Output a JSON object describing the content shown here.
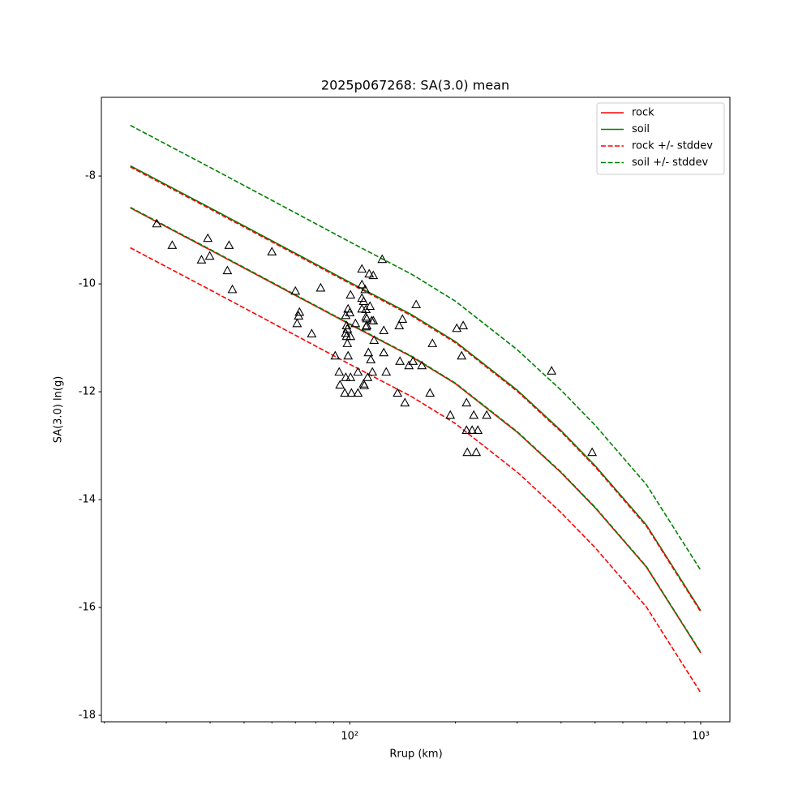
{
  "chart_data": {
    "type": "line",
    "title": "2025p067268: SA(3.0) mean",
    "xlabel": "Rrup (km)",
    "ylabel": "SA(3.0) ln(g)",
    "xscale": "log",
    "xlim": [
      19.6,
      1211
    ],
    "ylim": [
      -18.12,
      -6.54
    ],
    "xticks": [
      {
        "value": 100,
        "label": "10²"
      },
      {
        "value": 1000,
        "label": "10³"
      }
    ],
    "xminorticks": [
      20,
      30,
      40,
      50,
      60,
      70,
      80,
      90,
      200,
      300,
      400,
      500,
      600,
      700,
      800,
      900
    ],
    "yticks": [
      -18,
      -16,
      -14,
      -12,
      -10,
      -8
    ],
    "legend": "upper right",
    "x": [
      23.7,
      40,
      60,
      100,
      150,
      200,
      300,
      400,
      500,
      700,
      1000
    ],
    "series": [
      {
        "name": "rock",
        "color": "#ff0000",
        "values": [
          -8.59,
          -9.37,
          -9.98,
          -10.75,
          -11.35,
          -11.85,
          -12.75,
          -13.5,
          -14.15,
          -15.25,
          -16.84
        ]
      },
      {
        "name": "soil",
        "color": "#008000",
        "values": [
          -7.81,
          -8.59,
          -9.2,
          -9.97,
          -10.57,
          -11.07,
          -11.97,
          -12.72,
          -13.37,
          -14.47,
          -16.06
        ]
      },
      {
        "name": "rock +/- stddev",
        "color": "#ff0000",
        "linestyle": "dashed",
        "upper": [
          -7.83,
          -8.61,
          -9.22,
          -9.99,
          -10.59,
          -11.09,
          -11.99,
          -12.74,
          -13.39,
          -14.49,
          -16.08
        ],
        "lower": [
          -9.33,
          -10.11,
          -10.72,
          -11.49,
          -12.09,
          -12.59,
          -13.49,
          -14.24,
          -14.89,
          -15.99,
          -17.58
        ]
      },
      {
        "name": "soil +/- stddev",
        "color": "#008000",
        "linestyle": "dashed",
        "upper": [
          -7.06,
          -7.84,
          -8.45,
          -9.22,
          -9.82,
          -10.32,
          -11.22,
          -11.97,
          -12.62,
          -13.72,
          -15.31
        ],
        "lower": [
          -8.58,
          -9.36,
          -9.97,
          -10.74,
          -11.34,
          -11.84,
          -12.74,
          -13.49,
          -14.14,
          -15.24,
          -16.83
        ]
      }
    ],
    "scatter": {
      "marker": "triangle",
      "color": "#000000",
      "x": [
        28.2,
        31.2,
        39.4,
        37.8,
        39.9,
        45.3,
        44.8,
        46.3,
        60.0,
        70.0,
        70.8,
        71.5,
        71.9,
        77.9,
        82.6,
        90.9,
        93.3,
        93.8,
        97.4,
        96.8,
        97.4,
        97.9,
        97.4,
        97.9,
        98.4,
        98.4,
        98.9,
        98.9,
        100,
        100.5,
        100.5,
        101.1,
        100.5,
        103.8,
        105.5,
        105.5,
        108.3,
        108.3,
        108.3,
        108.3,
        109.5,
        109.5,
        110.0,
        110.6,
        111.2,
        111.2,
        111.2,
        111.8,
        111.8,
        112.4,
        113.0,
        113.6,
        114.2,
        114.8,
        115.4,
        116.0,
        116.7,
        116.7,
        117.3,
        123.7,
        125.0,
        125.0,
        127.0,
        136.8,
        138.3,
        139.0,
        141.3,
        143.6,
        147.4,
        151.4,
        154.6,
        160.5,
        169.3,
        172.0,
        193.4,
        201.8,
        208.3,
        210.5,
        215.1,
        215.1,
        216.2,
        223.2,
        225.6,
        229.3,
        231.7,
        245.6,
        375.9,
        490.4
      ],
      "y": [
        -8.89,
        -9.29,
        -9.16,
        -9.56,
        -9.49,
        -9.29,
        -9.76,
        -10.11,
        -9.41,
        -10.14,
        -10.74,
        -10.6,
        -10.53,
        -10.93,
        -10.08,
        -11.34,
        -11.64,
        -11.88,
        -11.74,
        -12.03,
        -10.59,
        -10.78,
        -10.92,
        -10.98,
        -11.11,
        -10.84,
        -11.34,
        -10.47,
        -10.54,
        -10.21,
        -11.74,
        -12.03,
        -10.98,
        -10.74,
        -11.64,
        -12.03,
        -10.47,
        -10.02,
        -9.73,
        -10.27,
        -10.33,
        -11.86,
        -11.89,
        -10.11,
        -10.48,
        -10.8,
        -10.62,
        -10.78,
        -10.65,
        -11.74,
        -11.28,
        -9.82,
        -10.42,
        -11.41,
        -10.69,
        -11.64,
        -9.85,
        -10.69,
        -11.05,
        -9.55,
        -10.87,
        -11.28,
        -11.64,
        -12.03,
        -10.78,
        -11.44,
        -10.66,
        -12.21,
        -11.52,
        -11.44,
        -10.39,
        -11.52,
        -12.03,
        -11.11,
        -12.44,
        -10.83,
        -11.34,
        -10.78,
        -12.21,
        -12.72,
        -13.13,
        -12.72,
        -12.44,
        -13.13,
        -12.72,
        -12.44,
        -11.62,
        -13.13
      ]
    }
  }
}
